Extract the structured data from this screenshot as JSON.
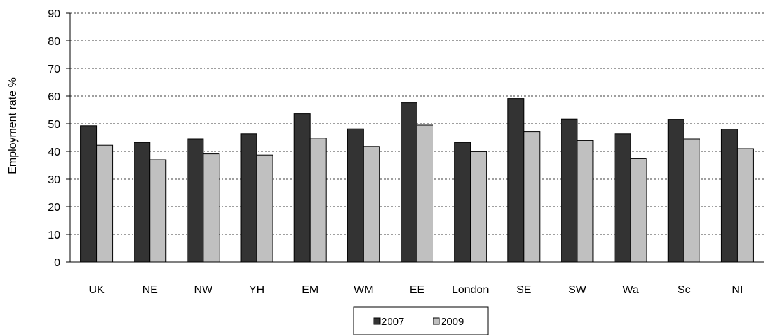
{
  "chart_data": {
    "type": "bar",
    "categories": [
      "UK",
      "NE",
      "NW",
      "YH",
      "EM",
      "WM",
      "EE",
      "London",
      "SE",
      "SW",
      "Wa",
      "Sc",
      "NI"
    ],
    "series": [
      {
        "name": "2007",
        "values": [
          49.3,
          43.2,
          44.5,
          46.3,
          53.6,
          48.2,
          57.6,
          43.2,
          59.1,
          51.7,
          46.3,
          51.6,
          48.1
        ],
        "color": "#333333"
      },
      {
        "name": "2009",
        "values": [
          42.2,
          37.0,
          39.1,
          38.7,
          44.8,
          41.8,
          49.5,
          39.9,
          47.1,
          43.9,
          37.4,
          44.5,
          41.0
        ],
        "color": "#c0c0c0"
      }
    ],
    "title": "",
    "xlabel": "",
    "ylabel": "Employment rate %",
    "ylim": [
      0,
      90
    ],
    "yticks": [
      0,
      10,
      20,
      30,
      40,
      50,
      60,
      70,
      80,
      90
    ],
    "grid": true,
    "legend_position": "bottom"
  }
}
